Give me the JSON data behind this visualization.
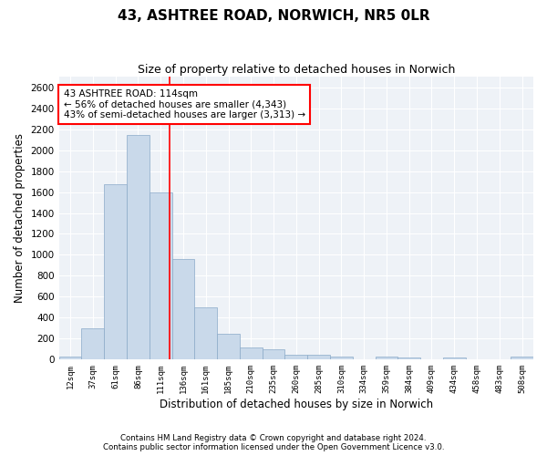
{
  "title": "43, ASHTREE ROAD, NORWICH, NR5 0LR",
  "subtitle": "Size of property relative to detached houses in Norwich",
  "xlabel": "Distribution of detached houses by size in Norwich",
  "ylabel": "Number of detached properties",
  "bar_color": "#c9d9ea",
  "bar_edge_color": "#8aaac8",
  "marker_line_color": "red",
  "annotation_text": "43 ASHTREE ROAD: 114sqm\n← 56% of detached houses are smaller (4,343)\n43% of semi-detached houses are larger (3,313) →",
  "annotation_box_color": "white",
  "annotation_box_edge": "red",
  "categories": [
    "12sqm",
    "37sqm",
    "61sqm",
    "86sqm",
    "111sqm",
    "136sqm",
    "161sqm",
    "185sqm",
    "210sqm",
    "235sqm",
    "260sqm",
    "285sqm",
    "310sqm",
    "334sqm",
    "359sqm",
    "384sqm",
    "409sqm",
    "434sqm",
    "458sqm",
    "483sqm",
    "508sqm"
  ],
  "values": [
    25,
    300,
    1670,
    2140,
    1595,
    960,
    500,
    250,
    120,
    100,
    50,
    50,
    30,
    0,
    30,
    20,
    0,
    20,
    0,
    0,
    25
  ],
  "ylim": [
    0,
    2700
  ],
  "yticks": [
    0,
    200,
    400,
    600,
    800,
    1000,
    1200,
    1400,
    1600,
    1800,
    2000,
    2200,
    2400,
    2600
  ],
  "footer_line1": "Contains HM Land Registry data © Crown copyright and database right 2024.",
  "footer_line2": "Contains public sector information licensed under the Open Government Licence v3.0.",
  "bg_color": "#eef2f7"
}
